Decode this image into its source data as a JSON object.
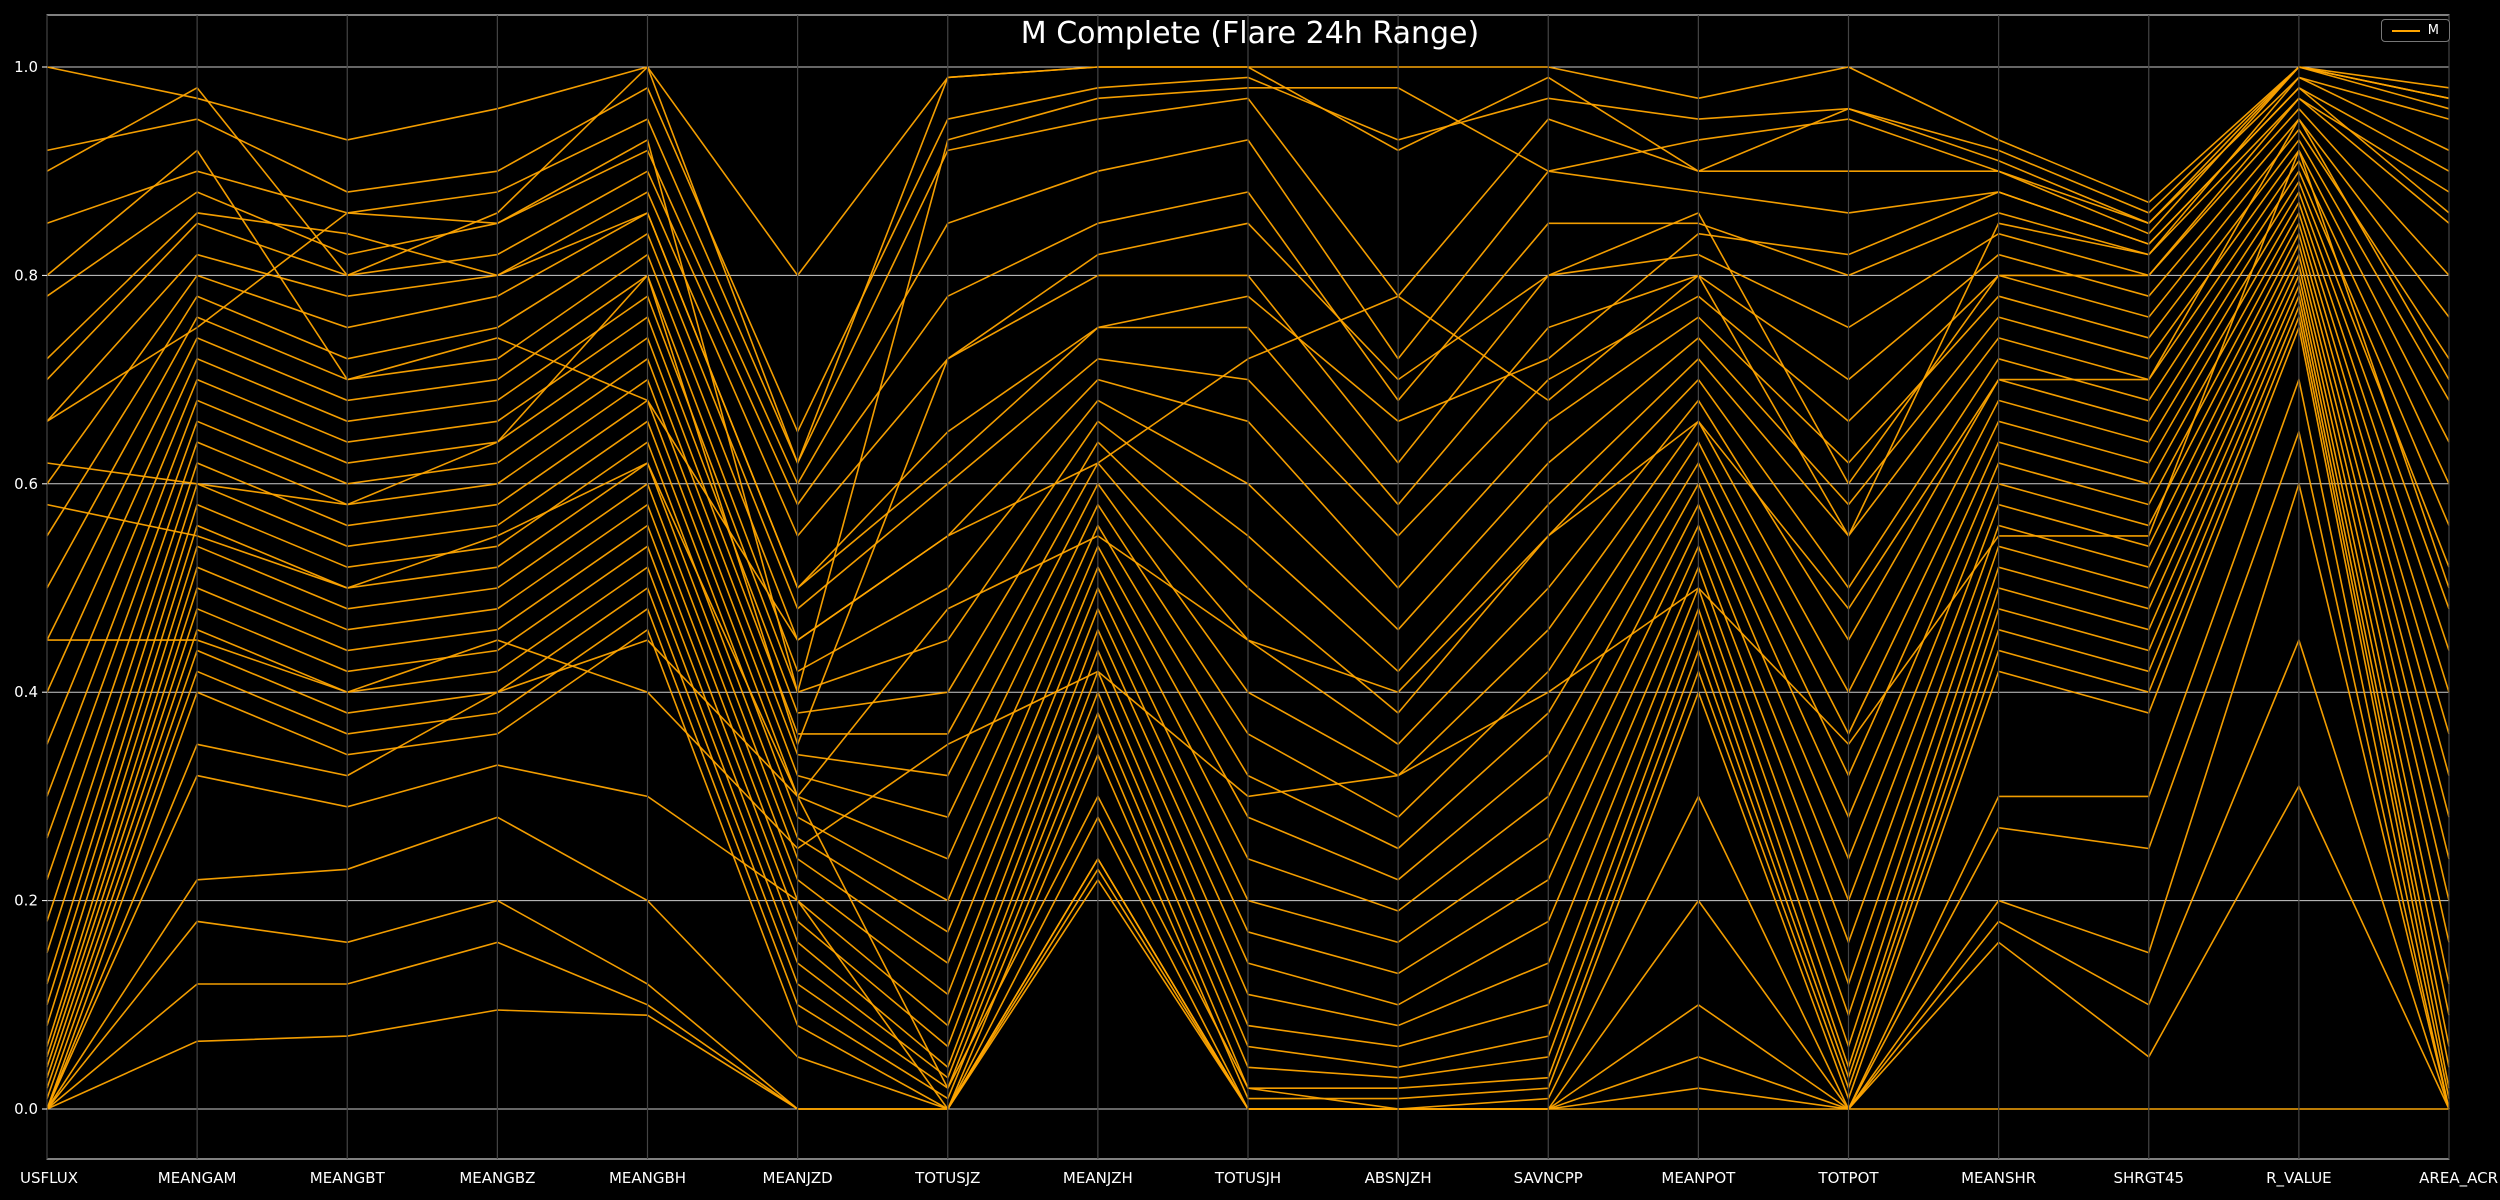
{
  "chart_data": {
    "type": "line",
    "subtype": "parallel-coordinates",
    "title": "M Complete (Flare 24h Range)",
    "axes": [
      "USFLUX",
      "MEANGAM",
      "MEANGBT",
      "MEANGBZ",
      "MEANGBH",
      "MEANJZD",
      "TOTUSJZ",
      "MEANJZH",
      "TOTUSJH",
      "ABSNJZH",
      "SAVNCPP",
      "MEANPOT",
      "TOTPOT",
      "MEANSHR",
      "SHRGT45",
      "R_VALUE",
      "AREA_ACR"
    ],
    "ylim": [
      0.0,
      1.0
    ],
    "yticks": [
      "0.0",
      "0.2",
      "0.4",
      "0.6",
      "0.8",
      "1.0"
    ],
    "legend": {
      "position": "top-right",
      "entries": [
        {
          "name": "M",
          "color": "#ffa500"
        }
      ]
    },
    "grid": true,
    "line_color": "#ffa500",
    "series": [
      {
        "values": [
          1.0,
          0.97,
          0.93,
          0.96,
          1.0,
          0.8,
          0.99,
          1.0,
          1.0,
          1.0,
          1.0,
          0.97,
          1.0,
          0.93,
          0.87,
          1.0,
          0.98
        ]
      },
      {
        "values": [
          0.92,
          0.95,
          0.88,
          0.9,
          0.98,
          0.65,
          0.95,
          0.98,
          0.99,
          0.93,
          0.97,
          0.95,
          0.96,
          0.92,
          0.86,
          1.0,
          0.97
        ]
      },
      {
        "values": [
          0.85,
          0.9,
          0.86,
          0.88,
          0.95,
          0.62,
          0.92,
          0.95,
          0.97,
          0.78,
          0.95,
          0.9,
          0.9,
          0.9,
          0.85,
          0.99,
          0.95
        ]
      },
      {
        "values": [
          0.78,
          0.88,
          0.82,
          0.85,
          0.92,
          0.6,
          0.85,
          0.9,
          0.93,
          0.72,
          0.9,
          0.88,
          0.86,
          0.88,
          0.83,
          0.98,
          0.9
        ]
      },
      {
        "values": [
          0.7,
          0.85,
          0.8,
          0.82,
          0.9,
          0.58,
          0.78,
          0.85,
          0.88,
          0.68,
          0.85,
          0.85,
          0.8,
          0.86,
          0.82,
          0.97,
          0.85
        ]
      },
      {
        "values": [
          0.66,
          0.82,
          0.78,
          0.8,
          0.88,
          0.55,
          0.72,
          0.8,
          0.8,
          0.62,
          0.8,
          0.82,
          0.75,
          0.84,
          0.8,
          0.96,
          0.8
        ]
      },
      {
        "values": [
          0.6,
          0.8,
          0.75,
          0.78,
          0.86,
          0.5,
          0.65,
          0.75,
          0.75,
          0.58,
          0.75,
          0.8,
          0.7,
          0.82,
          0.78,
          0.95,
          0.76
        ]
      },
      {
        "values": [
          0.55,
          0.78,
          0.72,
          0.75,
          0.84,
          0.48,
          0.6,
          0.72,
          0.7,
          0.55,
          0.7,
          0.78,
          0.66,
          0.8,
          0.76,
          0.94,
          0.72
        ]
      },
      {
        "values": [
          0.5,
          0.76,
          0.7,
          0.72,
          0.82,
          0.45,
          0.55,
          0.7,
          0.66,
          0.5,
          0.66,
          0.76,
          0.62,
          0.78,
          0.74,
          0.93,
          0.68
        ]
      },
      {
        "values": [
          0.45,
          0.74,
          0.68,
          0.7,
          0.8,
          0.42,
          0.5,
          0.68,
          0.6,
          0.46,
          0.62,
          0.74,
          0.58,
          0.76,
          0.72,
          0.92,
          0.64
        ]
      },
      {
        "values": [
          0.4,
          0.72,
          0.66,
          0.68,
          0.78,
          0.4,
          0.45,
          0.66,
          0.55,
          0.42,
          0.58,
          0.72,
          0.55,
          0.74,
          0.7,
          0.91,
          0.6
        ]
      },
      {
        "values": [
          0.35,
          0.7,
          0.64,
          0.66,
          0.76,
          0.38,
          0.4,
          0.64,
          0.5,
          0.38,
          0.55,
          0.7,
          0.5,
          0.72,
          0.68,
          0.9,
          0.56
        ]
      },
      {
        "values": [
          0.3,
          0.68,
          0.62,
          0.64,
          0.74,
          0.36,
          0.36,
          0.62,
          0.45,
          0.35,
          0.5,
          0.68,
          0.45,
          0.7,
          0.66,
          0.89,
          0.52
        ]
      },
      {
        "values": [
          0.26,
          0.66,
          0.6,
          0.62,
          0.72,
          0.34,
          0.32,
          0.6,
          0.4,
          0.32,
          0.46,
          0.66,
          0.4,
          0.68,
          0.64,
          0.88,
          0.48
        ]
      },
      {
        "values": [
          0.22,
          0.64,
          0.58,
          0.6,
          0.7,
          0.32,
          0.28,
          0.58,
          0.36,
          0.28,
          0.42,
          0.64,
          0.36,
          0.66,
          0.62,
          0.87,
          0.44
        ]
      },
      {
        "values": [
          0.18,
          0.62,
          0.56,
          0.58,
          0.68,
          0.3,
          0.24,
          0.56,
          0.32,
          0.25,
          0.38,
          0.62,
          0.32,
          0.64,
          0.6,
          0.86,
          0.4
        ]
      },
      {
        "values": [
          0.15,
          0.6,
          0.54,
          0.56,
          0.66,
          0.28,
          0.2,
          0.54,
          0.28,
          0.22,
          0.34,
          0.6,
          0.28,
          0.62,
          0.58,
          0.85,
          0.36
        ]
      },
      {
        "values": [
          0.12,
          0.58,
          0.52,
          0.54,
          0.64,
          0.26,
          0.17,
          0.52,
          0.24,
          0.19,
          0.3,
          0.58,
          0.24,
          0.6,
          0.56,
          0.84,
          0.32
        ]
      },
      {
        "values": [
          0.1,
          0.56,
          0.5,
          0.52,
          0.62,
          0.24,
          0.14,
          0.5,
          0.2,
          0.16,
          0.26,
          0.56,
          0.2,
          0.58,
          0.54,
          0.83,
          0.28
        ]
      },
      {
        "values": [
          0.08,
          0.54,
          0.48,
          0.5,
          0.6,
          0.22,
          0.11,
          0.48,
          0.17,
          0.13,
          0.22,
          0.54,
          0.16,
          0.56,
          0.52,
          0.82,
          0.24
        ]
      },
      {
        "values": [
          0.06,
          0.52,
          0.46,
          0.48,
          0.58,
          0.2,
          0.08,
          0.46,
          0.14,
          0.1,
          0.18,
          0.52,
          0.12,
          0.54,
          0.5,
          0.81,
          0.2
        ]
      },
      {
        "values": [
          0.05,
          0.5,
          0.44,
          0.46,
          0.56,
          0.18,
          0.06,
          0.44,
          0.11,
          0.08,
          0.14,
          0.5,
          0.09,
          0.52,
          0.48,
          0.8,
          0.16
        ]
      },
      {
        "values": [
          0.04,
          0.48,
          0.42,
          0.44,
          0.54,
          0.16,
          0.04,
          0.42,
          0.08,
          0.06,
          0.1,
          0.48,
          0.06,
          0.5,
          0.46,
          0.79,
          0.12
        ]
      },
      {
        "values": [
          0.03,
          0.46,
          0.4,
          0.42,
          0.52,
          0.14,
          0.03,
          0.4,
          0.06,
          0.04,
          0.07,
          0.46,
          0.04,
          0.48,
          0.44,
          0.78,
          0.09
        ]
      },
      {
        "values": [
          0.02,
          0.44,
          0.38,
          0.4,
          0.5,
          0.12,
          0.02,
          0.38,
          0.04,
          0.03,
          0.05,
          0.44,
          0.03,
          0.46,
          0.42,
          0.77,
          0.06
        ]
      },
      {
        "values": [
          0.01,
          0.42,
          0.36,
          0.38,
          0.48,
          0.1,
          0.01,
          0.36,
          0.02,
          0.02,
          0.03,
          0.42,
          0.02,
          0.44,
          0.4,
          0.76,
          0.04
        ]
      },
      {
        "values": [
          0.0,
          0.4,
          0.34,
          0.36,
          0.46,
          0.08,
          0.0,
          0.34,
          0.01,
          0.01,
          0.02,
          0.4,
          0.01,
          0.42,
          0.38,
          0.75,
          0.02
        ]
      },
      {
        "values": [
          0.0,
          0.32,
          0.29,
          0.33,
          0.3,
          0.2,
          0.0,
          0.28,
          0.0,
          0.0,
          0.01,
          0.3,
          0.0,
          0.3,
          0.3,
          0.7,
          0.01
        ]
      },
      {
        "values": [
          0.0,
          0.22,
          0.23,
          0.28,
          0.2,
          0.05,
          0.0,
          0.24,
          0.0,
          0.0,
          0.0,
          0.2,
          0.0,
          0.27,
          0.25,
          0.65,
          0.0
        ]
      },
      {
        "values": [
          0.0,
          0.18,
          0.16,
          0.2,
          0.12,
          0.0,
          0.0,
          0.23,
          0.0,
          0.0,
          0.0,
          0.1,
          0.0,
          0.2,
          0.15,
          0.6,
          0.0
        ]
      },
      {
        "values": [
          0.0,
          0.12,
          0.12,
          0.16,
          0.1,
          0.0,
          0.0,
          0.22,
          0.0,
          0.0,
          0.0,
          0.05,
          0.0,
          0.18,
          0.1,
          0.45,
          0.0
        ]
      },
      {
        "values": [
          0.0,
          0.065,
          0.07,
          0.095,
          0.09,
          0.0,
          0.0,
          0.24,
          0.0,
          0.0,
          0.0,
          0.02,
          0.0,
          0.16,
          0.05,
          0.31,
          0.0
        ]
      },
      {
        "values": [
          0.0,
          0.35,
          0.32,
          0.4,
          0.45,
          0.3,
          0.02,
          0.3,
          0.02,
          0.0,
          0.0,
          0.0,
          0.0,
          0.0,
          0.0,
          0.0,
          0.0
        ]
      },
      {
        "values": [
          0.66,
          0.75,
          0.86,
          0.85,
          0.93,
          0.4,
          0.93,
          0.97,
          0.98,
          0.98,
          0.9,
          0.93,
          0.95,
          0.9,
          0.84,
          1.0,
          0.96
        ]
      },
      {
        "values": [
          0.62,
          0.6,
          0.58,
          0.64,
          0.8,
          0.35,
          0.72,
          0.82,
          0.85,
          0.7,
          0.8,
          0.86,
          0.6,
          0.8,
          0.8,
          0.97,
          0.88
        ]
      },
      {
        "values": [
          0.8,
          0.92,
          0.7,
          0.74,
          0.68,
          0.45,
          0.55,
          0.62,
          0.72,
          0.78,
          0.68,
          0.8,
          0.55,
          0.85,
          0.82,
          0.99,
          0.92
        ]
      },
      {
        "values": [
          0.58,
          0.55,
          0.5,
          0.55,
          0.62,
          0.3,
          0.48,
          0.55,
          0.45,
          0.4,
          0.55,
          0.66,
          0.48,
          0.7,
          0.7,
          0.95,
          0.7
        ]
      },
      {
        "values": [
          0.9,
          0.98,
          0.8,
          0.86,
          1.0,
          0.62,
          0.99,
          1.0,
          1.0,
          0.92,
          0.99,
          0.9,
          0.96,
          0.91,
          0.85,
          1.0,
          0.97
        ]
      },
      {
        "values": [
          0.45,
          0.45,
          0.4,
          0.45,
          0.4,
          0.25,
          0.35,
          0.42,
          0.3,
          0.32,
          0.4,
          0.5,
          0.35,
          0.55,
          0.55,
          0.92,
          0.5
        ]
      },
      {
        "values": [
          0.72,
          0.86,
          0.84,
          0.8,
          0.86,
          0.5,
          0.62,
          0.75,
          0.78,
          0.66,
          0.72,
          0.84,
          0.82,
          0.88,
          0.83,
          0.98,
          0.86
        ]
      }
    ]
  }
}
